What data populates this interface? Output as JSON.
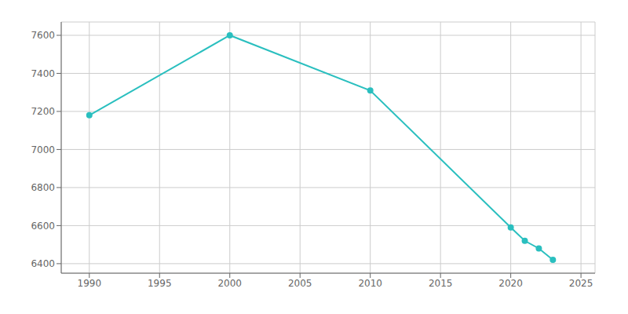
{
  "chart_data": {
    "type": "line",
    "x": [
      1990,
      2000,
      2010,
      2020,
      2021,
      2022,
      2023
    ],
    "values": [
      7180,
      7600,
      7310,
      6590,
      6520,
      6480,
      6420
    ],
    "color": "#2abfbf",
    "marker": "circle",
    "xlim": [
      1988,
      2026
    ],
    "ylim": [
      6350,
      7670
    ],
    "xticks": [
      1990,
      1995,
      2000,
      2005,
      2010,
      2015,
      2020,
      2025
    ],
    "yticks": [
      6400,
      6600,
      6800,
      7000,
      7200,
      7400,
      7600
    ],
    "grid": true
  }
}
